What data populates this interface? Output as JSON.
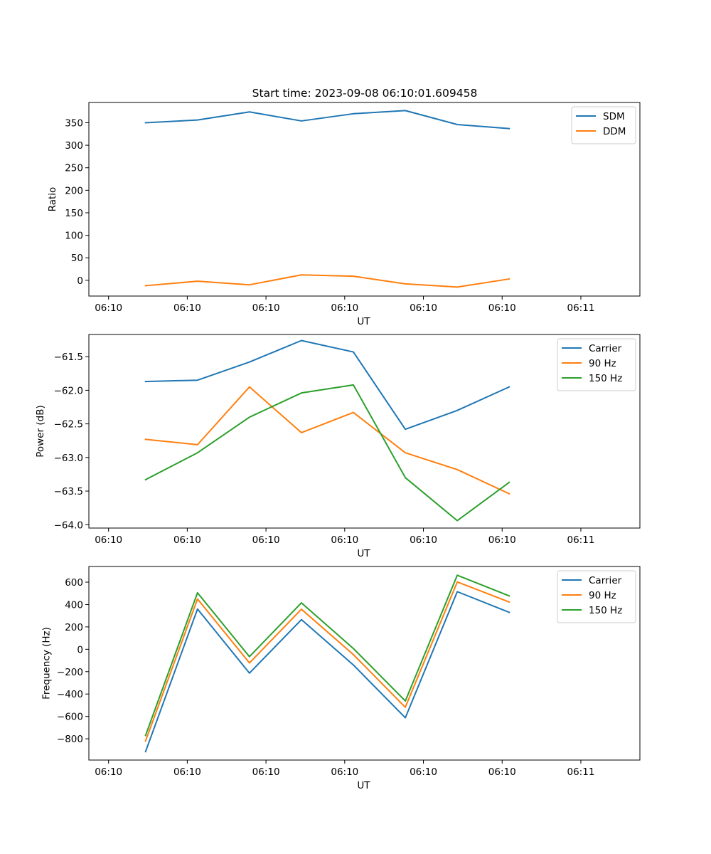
{
  "figure": {
    "title": "Start time: 2023-09-08 06:10:01.609458"
  },
  "chart_data": [
    {
      "type": "line",
      "xlabel": "UT",
      "ylabel": "Ratio",
      "xlim": [
        -0.025,
        0.675
      ],
      "ylim": [
        -35,
        395
      ],
      "x_ticks": [
        0,
        0.1,
        0.2,
        0.3,
        0.4,
        0.5,
        0.6
      ],
      "x_tick_labels": [
        "06:10",
        "06:10",
        "06:10",
        "06:10",
        "06:10",
        "06:10",
        "06:11"
      ],
      "y_ticks": [
        0,
        50,
        100,
        150,
        200,
        250,
        300,
        350
      ],
      "y_tick_labels": [
        "0",
        "50",
        "100",
        "150",
        "200",
        "250",
        "300",
        "350"
      ],
      "x": [
        0.047,
        0.113,
        0.179,
        0.245,
        0.311,
        0.377,
        0.443,
        0.509
      ],
      "series": [
        {
          "name": "SDM",
          "color": "#1f77b4",
          "values": [
            350,
            356,
            374,
            354,
            370,
            377,
            346,
            337
          ]
        },
        {
          "name": "DDM",
          "color": "#ff7f0e",
          "values": [
            -12,
            -2,
            -10,
            12,
            9,
            -8,
            -15,
            3
          ]
        }
      ],
      "legend": "upper right"
    },
    {
      "type": "line",
      "xlabel": "UT",
      "ylabel": "Power (dB)",
      "xlim": [
        -0.025,
        0.675
      ],
      "ylim": [
        -64.05,
        -61.17
      ],
      "x_ticks": [
        0,
        0.1,
        0.2,
        0.3,
        0.4,
        0.5,
        0.6
      ],
      "x_tick_labels": [
        "06:10",
        "06:10",
        "06:10",
        "06:10",
        "06:10",
        "06:10",
        "06:11"
      ],
      "y_ticks": [
        -64.0,
        -63.5,
        -63.0,
        -62.5,
        -62.0,
        -61.5
      ],
      "y_tick_labels": [
        "−64.0",
        "−63.5",
        "−63.0",
        "−62.5",
        "−62.0",
        "−61.5"
      ],
      "x": [
        0.047,
        0.113,
        0.179,
        0.245,
        0.311,
        0.377,
        0.443,
        0.509
      ],
      "series": [
        {
          "name": "Carrier",
          "color": "#1f77b4",
          "values": [
            -61.87,
            -61.85,
            -61.58,
            -61.26,
            -61.43,
            -62.58,
            -62.3,
            -61.95
          ]
        },
        {
          "name": "90 Hz",
          "color": "#ff7f0e",
          "values": [
            -62.73,
            -62.81,
            -61.95,
            -62.63,
            -62.33,
            -62.93,
            -63.18,
            -63.54
          ]
        },
        {
          "name": "150 Hz",
          "color": "#2ca02c",
          "values": [
            -63.33,
            -62.93,
            -62.4,
            -62.04,
            -61.92,
            -63.3,
            -63.94,
            -63.37
          ]
        }
      ],
      "legend": "upper right"
    },
    {
      "type": "line",
      "xlabel": "UT",
      "ylabel": "Frequency (Hz)",
      "xlim": [
        -0.025,
        0.675
      ],
      "ylim": [
        -990,
        740
      ],
      "x_ticks": [
        0,
        0.1,
        0.2,
        0.3,
        0.4,
        0.5,
        0.6
      ],
      "x_tick_labels": [
        "06:10",
        "06:10",
        "06:10",
        "06:10",
        "06:10",
        "06:10",
        "06:11"
      ],
      "y_ticks": [
        -800,
        -600,
        -400,
        -200,
        0,
        200,
        400,
        600
      ],
      "y_tick_labels": [
        "−800",
        "−600",
        "−400",
        "−200",
        "0",
        "200",
        "400",
        "600"
      ],
      "x": [
        0.047,
        0.113,
        0.179,
        0.245,
        0.311,
        0.377,
        0.443,
        0.509
      ],
      "series": [
        {
          "name": "Carrier",
          "color": "#1f77b4",
          "values": [
            -915,
            360,
            -213,
            265,
            -140,
            -612,
            515,
            330
          ]
        },
        {
          "name": "90 Hz",
          "color": "#ff7f0e",
          "values": [
            -820,
            450,
            -122,
            358,
            -47,
            -518,
            602,
            422
          ]
        },
        {
          "name": "150 Hz",
          "color": "#2ca02c",
          "values": [
            -770,
            505,
            -66,
            415,
            7,
            -462,
            662,
            477
          ]
        }
      ],
      "legend": "upper right"
    }
  ]
}
